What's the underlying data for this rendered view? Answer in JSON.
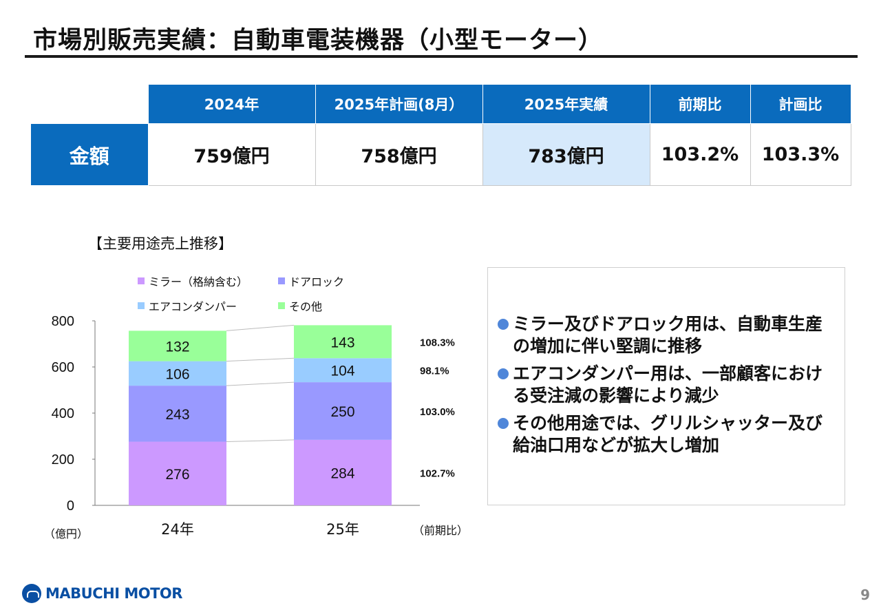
{
  "title": "市場別販売実績：自動車電装機器（小型モーター）",
  "summary_table": {
    "headers": [
      "2024年",
      "2025年計画(8月）",
      "2025年実績",
      "前期比",
      "計画比"
    ],
    "row_label": "金額",
    "values": [
      "759億円",
      "758億円",
      "783億円",
      "103.2%",
      "103.3%"
    ]
  },
  "chart_heading": "【主要用途売上推移】",
  "chart_data": {
    "type": "bar",
    "stacked": true,
    "categories": [
      "24年",
      "25年"
    ],
    "series": [
      {
        "name": "ミラー（格納含む）",
        "color": "#cc99ff",
        "values": [
          276,
          284
        ],
        "yoy": "102.7%"
      },
      {
        "name": "ドアロック",
        "color": "#9999ff",
        "values": [
          243,
          250
        ],
        "yoy": "103.0%"
      },
      {
        "name": "エアコンダンパー",
        "color": "#99ccff",
        "values": [
          106,
          104
        ],
        "yoy": "98.1%"
      },
      {
        "name": "その他",
        "color": "#99ff99",
        "values": [
          132,
          143
        ],
        "yoy": "108.3%"
      }
    ],
    "ylim": [
      0,
      800
    ],
    "yticks": [
      0,
      200,
      400,
      600,
      800
    ],
    "ylabel": "（億円）",
    "yoy_label": "（前期比）",
    "legend_position": "top"
  },
  "notes": [
    "ミラー及びドアロック用は、自動車生産の増加に伴い堅調に推移",
    "エアコンダンパー用は、一部顧客における受注減の影響により減少",
    "その他用途では、グリルシャッター及び給油口用などが拡大し増加"
  ],
  "footer": {
    "logo_text": "MABUCHI MOTOR",
    "logo_icon": "mabuchi-logo-icon",
    "page_number": "9"
  }
}
